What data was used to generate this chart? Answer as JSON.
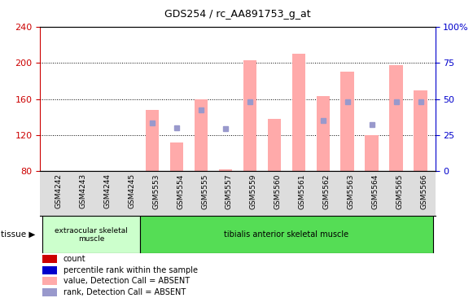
{
  "title": "GDS254 / rc_AA891753_g_at",
  "samples": [
    "GSM4242",
    "GSM4243",
    "GSM4244",
    "GSM4245",
    "GSM5553",
    "GSM5554",
    "GSM5555",
    "GSM5557",
    "GSM5559",
    "GSM5560",
    "GSM5561",
    "GSM5562",
    "GSM5563",
    "GSM5564",
    "GSM5565",
    "GSM5566"
  ],
  "pink_bar_values": [
    null,
    null,
    null,
    null,
    148,
    112,
    160,
    82,
    203,
    138,
    210,
    163,
    190,
    120,
    198,
    170
  ],
  "blue_square_values": [
    null,
    null,
    null,
    null,
    134,
    128,
    148,
    127,
    157,
    null,
    null,
    136,
    157,
    132,
    157,
    157
  ],
  "tissue_groups": [
    {
      "label": "extraocular skeletal\nmuscle",
      "start": 0,
      "end": 3,
      "color": "#ccffcc"
    },
    {
      "label": "tibialis anterior skeletal muscle",
      "start": 4,
      "end": 15,
      "color": "#55dd55"
    }
  ],
  "ylim_left": [
    80,
    240
  ],
  "ylim_right": [
    0,
    100
  ],
  "yticks_left": [
    80,
    120,
    160,
    200,
    240
  ],
  "yticks_right": [
    0,
    25,
    50,
    75,
    100
  ],
  "left_color": "#cc0000",
  "right_color": "#0000cc",
  "pink_bar_color": "#ffaaaa",
  "blue_square_color": "#9999cc",
  "background_color": "#ffffff",
  "legend_labels": [
    "count",
    "percentile rank within the sample",
    "value, Detection Call = ABSENT",
    "rank, Detection Call = ABSENT"
  ],
  "legend_colors": [
    "#cc0000",
    "#0000cc",
    "#ffaaaa",
    "#9999cc"
  ],
  "bar_width": 0.55
}
